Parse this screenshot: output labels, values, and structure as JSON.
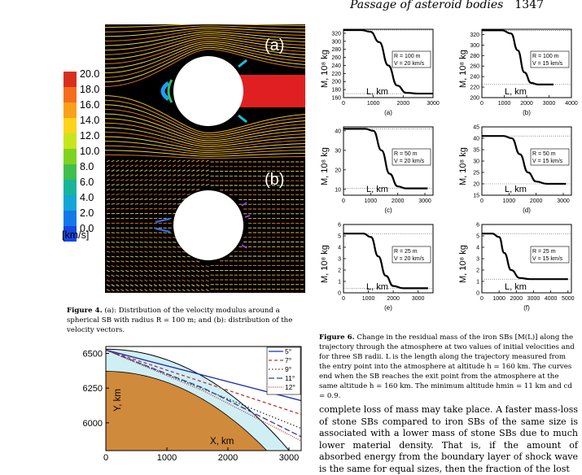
{
  "header": {
    "title": "Passage of asteroid bodies",
    "page": "1347"
  },
  "fig4": {
    "colorbar": {
      "ticks": [
        "20.0",
        "18.0",
        "16.0",
        "14.0",
        "12.0",
        "10.0",
        "8.0",
        "6.0",
        "4.0",
        "2.0",
        "0.0"
      ],
      "unit": "[km/s]",
      "colors": [
        "#d7301f",
        "#f46d1b",
        "#f9a11a",
        "#fdd31c",
        "#c7e51e",
        "#7ed321",
        "#3fbf4b",
        "#19b59a",
        "#13a6d6",
        "#1479e8",
        "#1746e0"
      ]
    },
    "panel_a": "(a)",
    "panel_b": "(b)",
    "caption_label": "Figure 4.",
    "caption_text": "(a): Distribution of the velocity modulus around a spherical SB with radius R = 100 m; and (b): distribution of the velocity vectors."
  },
  "fig6": {
    "caption_label": "Figure 6.",
    "caption_text": "Change in the residual mass of the iron SBs [M(L)] along the trajectory through the atmosphere at two values of initial velocities and for three SB radii. L is the length along the trajectory measured from the entry point into the atmosphere at altitude h = 160 km. The curves end when the SB reaches the exit point from the atmosphere at the same altitude h = 160 km. The minimum altitude hmin = 11 km and cd = 0.9.",
    "ylabel": "M, 10⁸ kg",
    "xlabel": "L, km",
    "chart_data": [
      {
        "type": "line",
        "panel": "(a)",
        "legend": [
          "R = 100 m",
          "V = 20 km/s"
        ],
        "xlim": [
          0,
          3000
        ],
        "ylim": [
          160,
          330
        ],
        "xticks": [
          "0",
          "1000",
          "2000",
          "3000"
        ],
        "yticks": [
          "160",
          "180",
          "200",
          "220",
          "240",
          "260",
          "280",
          "300",
          "320"
        ],
        "x": [
          0,
          600,
          900,
          1200,
          1500,
          1800,
          2100,
          2500,
          3000
        ],
        "values": [
          328,
          328,
          324,
          298,
          240,
          190,
          172,
          170,
          170
        ]
      },
      {
        "type": "line",
        "panel": "(b)",
        "legend": [
          "R = 100 m",
          "V = 15 km/s"
        ],
        "xlim": [
          0,
          4000
        ],
        "ylim": [
          200,
          330
        ],
        "xticks": [
          "0",
          "1000",
          "2000",
          "3000",
          "4000"
        ],
        "yticks": [
          "200",
          "220",
          "240",
          "260",
          "280",
          "300",
          "320"
        ],
        "x": [
          0,
          900,
          1300,
          1600,
          1900,
          2200,
          2500,
          3200
        ],
        "values": [
          328,
          328,
          322,
          290,
          248,
          228,
          225,
          225
        ]
      },
      {
        "type": "line",
        "panel": "(c)",
        "legend": [
          "R = 50 m",
          "V = 20 km/s"
        ],
        "xlim": [
          0,
          3300
        ],
        "ylim": [
          7,
          42
        ],
        "xticks": [
          "0",
          "1000",
          "2000",
          "3000"
        ],
        "yticks": [
          "10",
          "20",
          "30",
          "40"
        ],
        "x": [
          0,
          800,
          1100,
          1400,
          1700,
          2000,
          2300,
          3100
        ],
        "values": [
          41,
          41,
          40,
          30,
          18,
          11.5,
          10.5,
          10.5
        ]
      },
      {
        "type": "line",
        "panel": "(d)",
        "legend": [
          "R = 50 m",
          "V = 15 km/s"
        ],
        "xlim": [
          0,
          3300
        ],
        "ylim": [
          15,
          45
        ],
        "xticks": [
          "0",
          "1000",
          "2000",
          "3000"
        ],
        "yticks": [
          "15",
          "20",
          "25",
          "30",
          "35",
          "40",
          "45"
        ],
        "x": [
          0,
          800,
          1100,
          1400,
          1700,
          2000,
          2400,
          3100
        ],
        "values": [
          41,
          41,
          40,
          33,
          25,
          21,
          20,
          20
        ]
      },
      {
        "type": "line",
        "panel": "(e)",
        "legend": [
          "R = 25 m",
          "V = 20 km/s"
        ],
        "xlim": [
          0,
          3600
        ],
        "ylim": [
          0,
          6
        ],
        "xticks": [
          "0",
          "1000",
          "2000",
          "3000"
        ],
        "yticks": [
          "0",
          "1",
          "2",
          "3",
          "4",
          "5",
          "6"
        ],
        "x": [
          0,
          800,
          1100,
          1400,
          1700,
          2000,
          2400,
          3400
        ],
        "values": [
          5.2,
          5.2,
          4.9,
          3.2,
          1.5,
          0.6,
          0.4,
          0.4
        ]
      },
      {
        "type": "line",
        "panel": "(f)",
        "legend": [
          "R = 25 m",
          "V = 15 km/s"
        ],
        "xlim": [
          0,
          5200
        ],
        "ylim": [
          0,
          6
        ],
        "xticks": [
          "0",
          "1000",
          "2000",
          "3000",
          "4000",
          "5000"
        ],
        "yticks": [
          "0",
          "1",
          "2",
          "3",
          "4",
          "5",
          "6"
        ],
        "x": [
          0,
          600,
          1000,
          1300,
          1700,
          2200,
          2800,
          5000
        ],
        "values": [
          5.2,
          5.2,
          4.9,
          3.5,
          2.0,
          1.3,
          1.2,
          1.2
        ]
      }
    ]
  },
  "fig_traj": {
    "chart_data": {
      "type": "line",
      "xlabel": "X, km",
      "ylabel": "Y, km",
      "xlim": [
        0,
        3200
      ],
      "ylim": [
        5800,
        6550
      ],
      "xticks": [
        "0",
        "1000",
        "2000",
        "3000"
      ],
      "yticks": [
        "6000",
        "6250",
        "6500"
      ],
      "series": [
        {
          "name": "5°",
          "color": "#1d2fb0",
          "dash": "",
          "x": [
            0,
            3200
          ],
          "values": [
            6525,
            6160
          ]
        },
        {
          "name": "7°",
          "color": "#c0302b",
          "dash": "4,3",
          "x": [
            0,
            3200
          ],
          "values": [
            6525,
            6060
          ]
        },
        {
          "name": "9°",
          "color": "#333333",
          "dash": "1.5,2.5",
          "x": [
            0,
            3200
          ],
          "values": [
            6525,
            5960
          ]
        },
        {
          "name": "11°",
          "color": "#2b3f9c",
          "dash": "7,3",
          "x": [
            0,
            1600,
            3200
          ],
          "values": [
            6525,
            6250,
            5900
          ]
        },
        {
          "name": "12°",
          "color": "#c0302b",
          "dash": "1,1.5",
          "x": [
            0,
            1600,
            3200
          ],
          "values": [
            6525,
            6230,
            5870
          ]
        }
      ]
    }
  },
  "body_text": "complete loss of mass may take place. A faster mass-loss of stone SBs compared to iron SBs of the same size is associated with a lower mass of stone SBs due to much lower material density. That is, if the amount of absorbed energy from the boundary layer of shock wave is the same for equal sizes, then the fraction of the lost"
}
